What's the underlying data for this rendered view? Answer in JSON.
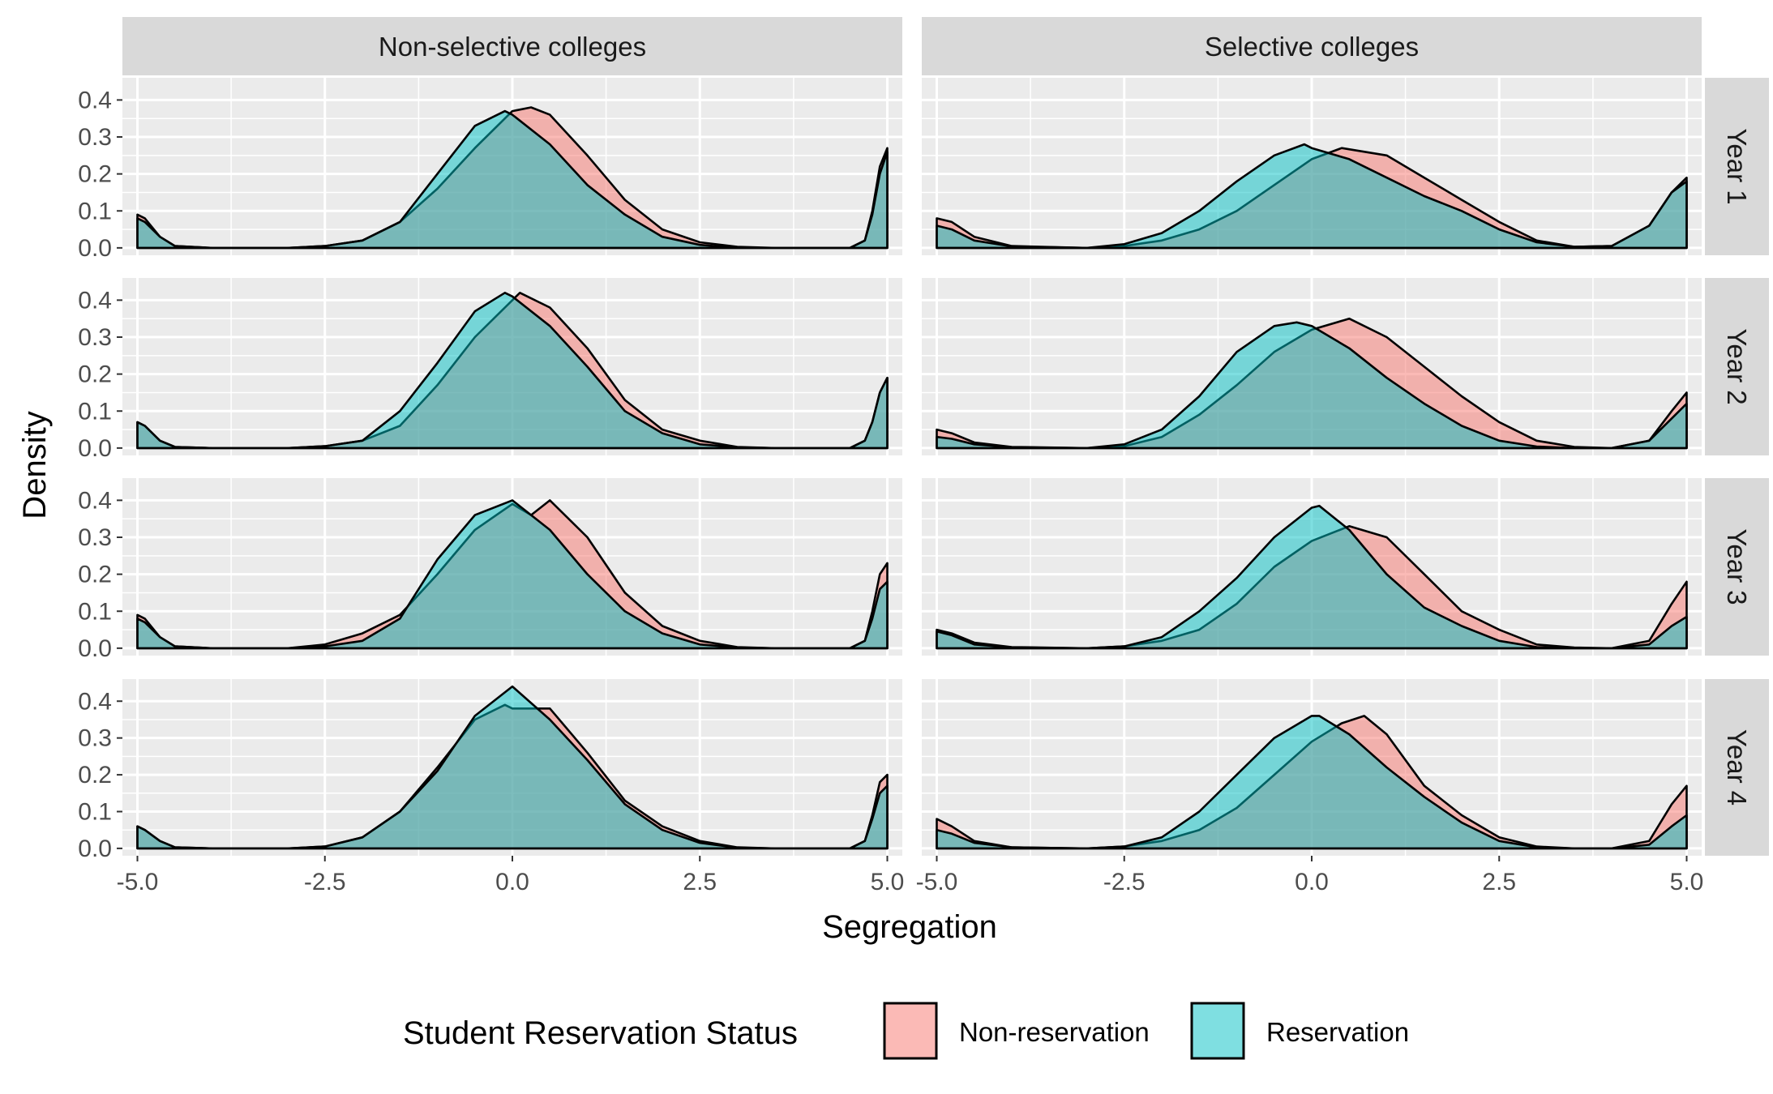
{
  "chart_data": {
    "type": "area",
    "subtype": "faceted density plot",
    "xlabel": "Segregation",
    "ylabel": "Density",
    "xlim": [
      -5.2,
      5.2
    ],
    "ylim": [
      -0.02,
      0.46
    ],
    "x_ticks": [
      -5.0,
      -2.5,
      0.0,
      2.5,
      5.0
    ],
    "x_tick_labels": [
      "-5.0",
      "-2.5",
      "0.0",
      "2.5",
      "5.0"
    ],
    "y_ticks": [
      0.0,
      0.1,
      0.2,
      0.3,
      0.4
    ],
    "y_tick_labels": [
      "0.0",
      "0.1",
      "0.2",
      "0.3",
      "0.4"
    ],
    "grid": true,
    "columns": [
      "Non-selective colleges",
      "Selective colleges"
    ],
    "rows": [
      "Year 1",
      "Year 2",
      "Year 3",
      "Year 4"
    ],
    "legend": {
      "title": "Student Reservation Status",
      "position": "bottom",
      "entries": [
        {
          "name": "Non-reservation",
          "color": "#F8766D"
        },
        {
          "name": "Reservation",
          "color": "#00BFC4"
        }
      ]
    },
    "colors": {
      "non_reservation": "#F8766D",
      "reservation": "#00BFC4",
      "panel_bg": "#EBEBEB",
      "strip_bg": "#D9D9D9"
    },
    "panels": [
      {
        "column": "Non-selective colleges",
        "row": "Year 1",
        "series": [
          {
            "name": "Non-reservation",
            "x": [
              -5,
              -4.9,
              -4.7,
              -4.5,
              -4,
              -3,
              -2.5,
              -2,
              -1.5,
              -1,
              -0.5,
              0,
              0.25,
              0.5,
              1,
              1.5,
              2,
              2.5,
              3,
              3.5,
              4,
              4.5,
              4.7,
              4.8,
              4.9,
              5
            ],
            "y": [
              0.09,
              0.08,
              0.03,
              0.005,
              0,
              0,
              0.005,
              0.02,
              0.07,
              0.16,
              0.27,
              0.37,
              0.38,
              0.36,
              0.25,
              0.13,
              0.05,
              0.015,
              0.003,
              0,
              0,
              0,
              0.02,
              0.1,
              0.22,
              0.27
            ]
          },
          {
            "name": "Reservation",
            "x": [
              -5,
              -4.9,
              -4.7,
              -4.5,
              -4,
              -3,
              -2.5,
              -2,
              -1.5,
              -1,
              -0.5,
              -0.1,
              0,
              0.5,
              1,
              1.5,
              2,
              2.5,
              3,
              3.5,
              4,
              4.5,
              4.7,
              4.8,
              4.9,
              5
            ],
            "y": [
              0.08,
              0.07,
              0.03,
              0.005,
              0,
              0,
              0.005,
              0.02,
              0.07,
              0.2,
              0.33,
              0.37,
              0.36,
              0.28,
              0.17,
              0.09,
              0.03,
              0.008,
              0,
              0,
              0,
              0,
              0.02,
              0.09,
              0.2,
              0.26
            ]
          }
        ]
      },
      {
        "column": "Selective colleges",
        "row": "Year 1",
        "series": [
          {
            "name": "Non-reservation",
            "x": [
              -5,
              -4.8,
              -4.5,
              -4,
              -3,
              -2.5,
              -2,
              -1.5,
              -1,
              -0.5,
              0,
              0.4,
              1,
              1.5,
              2,
              2.5,
              3,
              3.5,
              4,
              4.5,
              4.8,
              5
            ],
            "y": [
              0.08,
              0.07,
              0.03,
              0.005,
              0,
              0.005,
              0.02,
              0.05,
              0.1,
              0.17,
              0.24,
              0.27,
              0.25,
              0.19,
              0.13,
              0.07,
              0.02,
              0.003,
              0.005,
              0.06,
              0.15,
              0.19
            ]
          },
          {
            "name": "Reservation",
            "x": [
              -5,
              -4.8,
              -4.5,
              -4,
              -3,
              -2.5,
              -2,
              -1.5,
              -1,
              -0.5,
              -0.1,
              0,
              0.5,
              1,
              1.5,
              2,
              2.5,
              3,
              3.5,
              4,
              4.5,
              4.8,
              5
            ],
            "y": [
              0.06,
              0.05,
              0.02,
              0.004,
              0,
              0.01,
              0.04,
              0.1,
              0.18,
              0.25,
              0.28,
              0.27,
              0.24,
              0.19,
              0.14,
              0.1,
              0.05,
              0.015,
              0.003,
              0.005,
              0.06,
              0.15,
              0.18
            ]
          }
        ]
      },
      {
        "column": "Non-selective colleges",
        "row": "Year 2",
        "series": [
          {
            "name": "Non-reservation",
            "x": [
              -5,
              -4.9,
              -4.7,
              -4.5,
              -4,
              -3,
              -2.5,
              -2,
              -1.5,
              -1,
              -0.5,
              -0.1,
              0,
              0.1,
              0.5,
              1,
              1.5,
              2,
              2.5,
              3,
              3.5,
              4,
              4.5,
              4.7,
              4.8,
              4.9,
              5
            ],
            "y": [
              0.07,
              0.06,
              0.02,
              0.003,
              0,
              0,
              0.005,
              0.02,
              0.06,
              0.17,
              0.3,
              0.38,
              0.4,
              0.42,
              0.38,
              0.27,
              0.13,
              0.05,
              0.02,
              0.003,
              0,
              0,
              0,
              0.02,
              0.07,
              0.15,
              0.19
            ]
          },
          {
            "name": "Reservation",
            "x": [
              -5,
              -4.9,
              -4.7,
              -4.5,
              -4,
              -3,
              -2.5,
              -2,
              -1.5,
              -1,
              -0.5,
              -0.1,
              0,
              0.5,
              1,
              1.5,
              2,
              2.5,
              3,
              3.5,
              4,
              4.5,
              4.7,
              4.8,
              4.9,
              5
            ],
            "y": [
              0.07,
              0.06,
              0.02,
              0.003,
              0,
              0,
              0.005,
              0.02,
              0.1,
              0.23,
              0.37,
              0.42,
              0.41,
              0.33,
              0.22,
              0.1,
              0.04,
              0.01,
              0.002,
              0,
              0,
              0,
              0.02,
              0.07,
              0.15,
              0.19
            ]
          }
        ]
      },
      {
        "column": "Selective colleges",
        "row": "Year 2",
        "series": [
          {
            "name": "Non-reservation",
            "x": [
              -5,
              -4.8,
              -4.5,
              -4,
              -3,
              -2.5,
              -2,
              -1.5,
              -1,
              -0.5,
              0,
              0.5,
              1,
              1.5,
              2,
              2.5,
              3,
              3.5,
              4,
              4.5,
              4.8,
              5
            ],
            "y": [
              0.05,
              0.04,
              0.015,
              0.003,
              0,
              0.005,
              0.03,
              0.09,
              0.17,
              0.26,
              0.32,
              0.35,
              0.3,
              0.22,
              0.14,
              0.07,
              0.02,
              0.003,
              0,
              0.02,
              0.1,
              0.15
            ]
          },
          {
            "name": "Reservation",
            "x": [
              -5,
              -4.8,
              -4.5,
              -4,
              -3,
              -2.5,
              -2,
              -1.5,
              -1,
              -0.5,
              -0.2,
              0,
              0.5,
              1,
              1.5,
              2,
              2.5,
              3,
              3.5,
              4,
              4.5,
              4.8,
              5
            ],
            "y": [
              0.03,
              0.025,
              0.01,
              0.002,
              0,
              0.01,
              0.05,
              0.14,
              0.26,
              0.33,
              0.34,
              0.33,
              0.27,
              0.19,
              0.12,
              0.06,
              0.02,
              0.004,
              0,
              0,
              0.02,
              0.08,
              0.12
            ]
          }
        ]
      },
      {
        "column": "Non-selective colleges",
        "row": "Year 3",
        "series": [
          {
            "name": "Non-reservation",
            "x": [
              -5,
              -4.9,
              -4.7,
              -4.5,
              -4,
              -3,
              -2.5,
              -2,
              -1.5,
              -1,
              -0.5,
              0,
              0.25,
              0.5,
              1,
              1.5,
              2,
              2.5,
              3,
              3.5,
              4,
              4.5,
              4.7,
              4.8,
              4.9,
              5
            ],
            "y": [
              0.09,
              0.08,
              0.03,
              0.005,
              0,
              0,
              0.01,
              0.04,
              0.09,
              0.2,
              0.32,
              0.39,
              0.36,
              0.4,
              0.3,
              0.15,
              0.06,
              0.02,
              0.003,
              0,
              0,
              0,
              0.02,
              0.1,
              0.2,
              0.23
            ]
          },
          {
            "name": "Reservation",
            "x": [
              -5,
              -4.9,
              -4.7,
              -4.5,
              -4,
              -3,
              -2.5,
              -2,
              -1.5,
              -1,
              -0.5,
              0,
              0.5,
              1,
              1.5,
              2,
              2.5,
              3,
              3.5,
              4,
              4.5,
              4.7,
              4.8,
              4.9,
              5
            ],
            "y": [
              0.08,
              0.07,
              0.03,
              0.005,
              0,
              0,
              0.005,
              0.02,
              0.08,
              0.24,
              0.36,
              0.4,
              0.32,
              0.2,
              0.1,
              0.04,
              0.01,
              0.002,
              0,
              0,
              0,
              0.02,
              0.08,
              0.16,
              0.18
            ]
          }
        ]
      },
      {
        "column": "Selective colleges",
        "row": "Year 3",
        "series": [
          {
            "name": "Non-reservation",
            "x": [
              -5,
              -4.8,
              -4.5,
              -4,
              -3,
              -2.5,
              -2,
              -1.5,
              -1,
              -0.5,
              0,
              0.5,
              1,
              1.5,
              2,
              2.5,
              3,
              3.5,
              4,
              4.5,
              4.8,
              5
            ],
            "y": [
              0.05,
              0.04,
              0.015,
              0.003,
              0,
              0.005,
              0.02,
              0.05,
              0.12,
              0.22,
              0.29,
              0.33,
              0.3,
              0.2,
              0.1,
              0.05,
              0.01,
              0.002,
              0,
              0.02,
              0.12,
              0.18
            ]
          },
          {
            "name": "Reservation",
            "x": [
              -5,
              -4.8,
              -4.5,
              -4,
              -3,
              -2.5,
              -2,
              -1.5,
              -1,
              -0.5,
              0,
              0.1,
              0.5,
              1,
              1.5,
              2,
              2.5,
              3,
              3.5,
              4,
              4.5,
              4.8,
              5
            ],
            "y": [
              0.045,
              0.035,
              0.01,
              0.002,
              0,
              0.005,
              0.03,
              0.1,
              0.19,
              0.3,
              0.38,
              0.385,
              0.32,
              0.2,
              0.11,
              0.06,
              0.02,
              0.003,
              0,
              0,
              0.01,
              0.06,
              0.085
            ]
          }
        ]
      },
      {
        "column": "Non-selective colleges",
        "row": "Year 4",
        "series": [
          {
            "name": "Non-reservation",
            "x": [
              -5,
              -4.9,
              -4.7,
              -4.5,
              -4,
              -3,
              -2.5,
              -2,
              -1.5,
              -1,
              -0.5,
              -0.1,
              0,
              0.2,
              0.5,
              1,
              1.5,
              2,
              2.5,
              3,
              3.5,
              4,
              4.5,
              4.7,
              4.8,
              4.9,
              5
            ],
            "y": [
              0.06,
              0.05,
              0.02,
              0.003,
              0,
              0,
              0.005,
              0.03,
              0.1,
              0.22,
              0.35,
              0.39,
              0.38,
              0.38,
              0.38,
              0.26,
              0.13,
              0.06,
              0.02,
              0.003,
              0,
              0,
              0,
              0.02,
              0.09,
              0.18,
              0.2
            ]
          },
          {
            "name": "Reservation",
            "x": [
              -5,
              -4.9,
              -4.7,
              -4.5,
              -4,
              -3,
              -2.5,
              -2,
              -1.5,
              -1,
              -0.5,
              0,
              0.5,
              1,
              1.5,
              2,
              2.5,
              3,
              3.5,
              4,
              4.5,
              4.7,
              4.8,
              4.9,
              5
            ],
            "y": [
              0.06,
              0.05,
              0.02,
              0.003,
              0,
              0,
              0.005,
              0.03,
              0.1,
              0.21,
              0.36,
              0.44,
              0.35,
              0.24,
              0.12,
              0.05,
              0.015,
              0.002,
              0,
              0,
              0,
              0.02,
              0.08,
              0.15,
              0.17
            ]
          }
        ]
      },
      {
        "column": "Selective colleges",
        "row": "Year 4",
        "series": [
          {
            "name": "Non-reservation",
            "x": [
              -5,
              -4.8,
              -4.5,
              -4,
              -3,
              -2.5,
              -2,
              -1.5,
              -1,
              -0.5,
              0,
              0.4,
              0.7,
              1,
              1.5,
              2,
              2.5,
              3,
              3.5,
              4,
              4.5,
              4.8,
              5
            ],
            "y": [
              0.08,
              0.06,
              0.02,
              0.003,
              0,
              0.005,
              0.02,
              0.05,
              0.11,
              0.2,
              0.29,
              0.34,
              0.36,
              0.31,
              0.17,
              0.09,
              0.03,
              0.005,
              0,
              0,
              0.02,
              0.12,
              0.17
            ]
          },
          {
            "name": "Reservation",
            "x": [
              -5,
              -4.8,
              -4.5,
              -4,
              -3,
              -2.5,
              -2,
              -1.5,
              -1,
              -0.5,
              0,
              0.1,
              0.5,
              1,
              1.5,
              2,
              2.5,
              3,
              3.5,
              4,
              4.5,
              4.8,
              5
            ],
            "y": [
              0.05,
              0.04,
              0.015,
              0.003,
              0,
              0.005,
              0.03,
              0.1,
              0.2,
              0.3,
              0.36,
              0.36,
              0.31,
              0.22,
              0.14,
              0.07,
              0.02,
              0.003,
              0,
              0,
              0.01,
              0.06,
              0.09
            ]
          }
        ]
      }
    ]
  }
}
